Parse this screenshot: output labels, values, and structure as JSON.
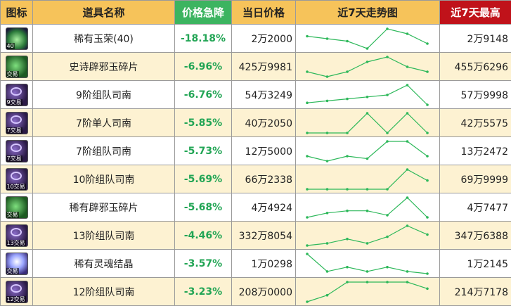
{
  "headers": {
    "icon": "图标",
    "name": "道具名称",
    "drop": "价格急降",
    "price": "当日价格",
    "trend": "近7天走势图",
    "max": "近7天最高"
  },
  "colors": {
    "header_bg": "#f6c35a",
    "drop_header_bg": "#3cb460",
    "max_header_bg": "#c0121a",
    "drop_text": "#22a555",
    "sparkline": "#2db85a",
    "row_alt_bg": "#fdf2d2"
  },
  "rows": [
    {
      "icon": "jade-glory-icon",
      "tag": "40",
      "name": "稀有玉荣(40)",
      "drop": "-18.18%",
      "price": "2万2000",
      "trend": [
        7,
        6,
        5,
        2,
        10,
        8,
        4
      ],
      "max": "2万9148"
    },
    {
      "icon": "jade-fragment-icon",
      "tag": "交易",
      "name": "史诗辟邪玉碎片",
      "drop": "-6.96%",
      "price": "425万9981",
      "trend": [
        1,
        0,
        1,
        3,
        4,
        2,
        1
      ],
      "max": "455万6296"
    },
    {
      "icon": "compass-icon",
      "tag": "9交易",
      "name": "9阶组队司南",
      "drop": "-6.76%",
      "price": "54万3249",
      "trend": [
        1,
        2,
        3,
        4,
        5,
        10,
        0
      ],
      "max": "57万9998"
    },
    {
      "icon": "compass-icon",
      "tag": "7交易",
      "name": "7阶单人司南",
      "drop": "-5.85%",
      "price": "40万2050",
      "trend": [
        1,
        1,
        1,
        9,
        1,
        9,
        1
      ],
      "max": "42万5575"
    },
    {
      "icon": "compass-icon",
      "tag": "7交易",
      "name": "7阶组队司南",
      "drop": "-5.73%",
      "price": "12万5000",
      "trend": [
        3,
        1,
        3,
        2,
        9,
        9,
        3
      ],
      "max": "13万2472"
    },
    {
      "icon": "compass-icon",
      "tag": "10交易",
      "name": "10阶组队司南",
      "drop": "-5.69%",
      "price": "66万2338",
      "trend": [
        1,
        1,
        1,
        1,
        1,
        10,
        5
      ],
      "max": "69万9999"
    },
    {
      "icon": "jade-fragment-icon",
      "tag": "交易",
      "name": "稀有辟邪玉碎片",
      "drop": "-5.68%",
      "price": "4万4924",
      "trend": [
        1,
        3,
        4,
        4,
        2,
        10,
        1
      ],
      "max": "4万7477"
    },
    {
      "icon": "compass-icon",
      "tag": "13交易",
      "name": "13阶组队司南",
      "drop": "-4.46%",
      "price": "332万8054",
      "trend": [
        1,
        2,
        4,
        2,
        5,
        10,
        6
      ],
      "max": "347万6388"
    },
    {
      "icon": "soul-crystal-icon",
      "tag": "交易",
      "name": "稀有灵魂结晶",
      "drop": "-3.57%",
      "price": "1万0298",
      "trend": [
        10,
        2,
        4,
        2,
        4,
        2,
        1
      ],
      "max": "1万2145"
    },
    {
      "icon": "compass-icon",
      "tag": "12交易",
      "name": "12阶组队司南",
      "drop": "-3.23%",
      "price": "208万0000",
      "trend": [
        1,
        2,
        4,
        4,
        4,
        4,
        3
      ],
      "max": "214万7178"
    }
  ]
}
